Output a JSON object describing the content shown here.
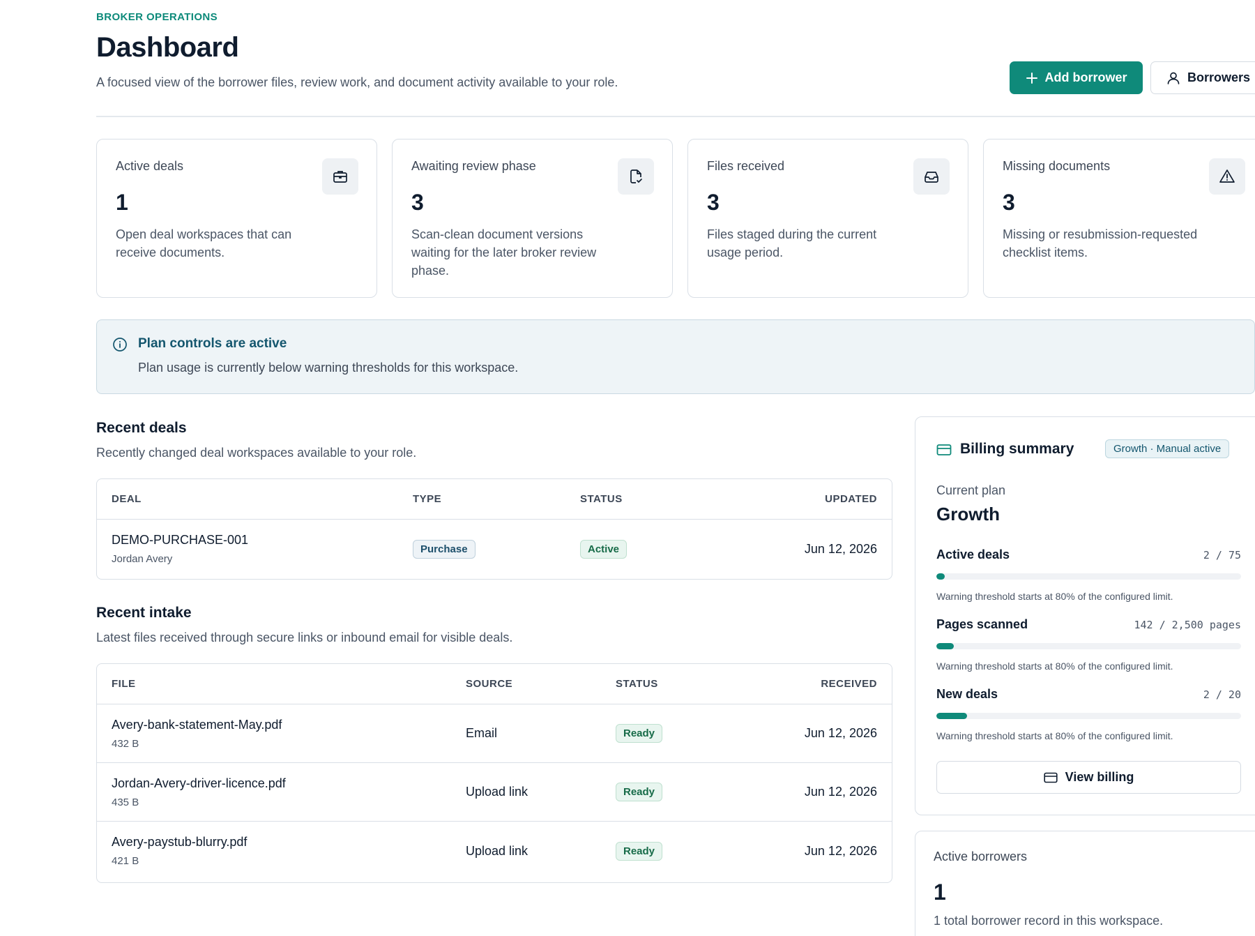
{
  "header": {
    "eyebrow": "BROKER OPERATIONS",
    "title": "Dashboard",
    "subtitle": "A focused view of the borrower files, review work, and document activity available to your role.",
    "add_borrower_label": "Add borrower",
    "borrowers_label": "Borrowers"
  },
  "stats": [
    {
      "label": "Active deals",
      "value": "1",
      "description": "Open deal workspaces that can receive documents.",
      "icon": "briefcase-icon"
    },
    {
      "label": "Awaiting review phase",
      "value": "3",
      "description": "Scan-clean document versions waiting for the later broker review phase.",
      "icon": "file-check-icon"
    },
    {
      "label": "Files received",
      "value": "3",
      "description": "Files staged during the current usage period.",
      "icon": "inbox-icon"
    },
    {
      "label": "Missing documents",
      "value": "3",
      "description": "Missing or resubmission-requested checklist items.",
      "icon": "warning-icon"
    }
  ],
  "notice": {
    "title": "Plan controls are active",
    "body": "Plan usage is currently below warning thresholds for this workspace."
  },
  "recent_deals": {
    "title": "Recent deals",
    "subtitle": "Recently changed deal workspaces available to your role.",
    "columns": [
      "DEAL",
      "TYPE",
      "STATUS",
      "UPDATED"
    ],
    "rows": [
      {
        "deal": "DEMO-PURCHASE-001",
        "borrower": "Jordan Avery",
        "type": "Purchase",
        "status": "Active",
        "updated": "Jun 12, 2026"
      }
    ]
  },
  "recent_intake": {
    "title": "Recent intake",
    "subtitle": "Latest files received through secure links or inbound email for visible deals.",
    "columns": [
      "FILE",
      "SOURCE",
      "STATUS",
      "RECEIVED"
    ],
    "rows": [
      {
        "file": "Avery-bank-statement-May.pdf",
        "size": "432 B",
        "source": "Email",
        "status": "Ready",
        "received": "Jun 12, 2026"
      },
      {
        "file": "Jordan-Avery-driver-licence.pdf",
        "size": "435 B",
        "source": "Upload link",
        "status": "Ready",
        "received": "Jun 12, 2026"
      },
      {
        "file": "Avery-paystub-blurry.pdf",
        "size": "421 B",
        "source": "Upload link",
        "status": "Ready",
        "received": "Jun 12, 2026"
      }
    ]
  },
  "billing": {
    "title": "Billing summary",
    "badge": "Growth · Manual active",
    "plan_label": "Current plan",
    "plan_name": "Growth",
    "meters": [
      {
        "label": "Active deals",
        "value": "2 / 75",
        "fraction": 0.027,
        "note": "Warning threshold starts at 80% of the configured limit."
      },
      {
        "label": "Pages scanned",
        "value": "142 / 2,500 pages",
        "fraction": 0.057,
        "note": "Warning threshold starts at 80% of the configured limit."
      },
      {
        "label": "New deals",
        "value": "2 / 20",
        "fraction": 0.1,
        "note": "Warning threshold starts at 80% of the configured limit."
      }
    ],
    "view_billing_label": "View billing"
  },
  "active_borrowers": {
    "label": "Active borrowers",
    "value": "1",
    "description": "1 total borrower record in this workspace."
  },
  "colors": {
    "accent": "#0f8a7a",
    "notice_title": "#14566e",
    "status_badge": "#176b48"
  }
}
